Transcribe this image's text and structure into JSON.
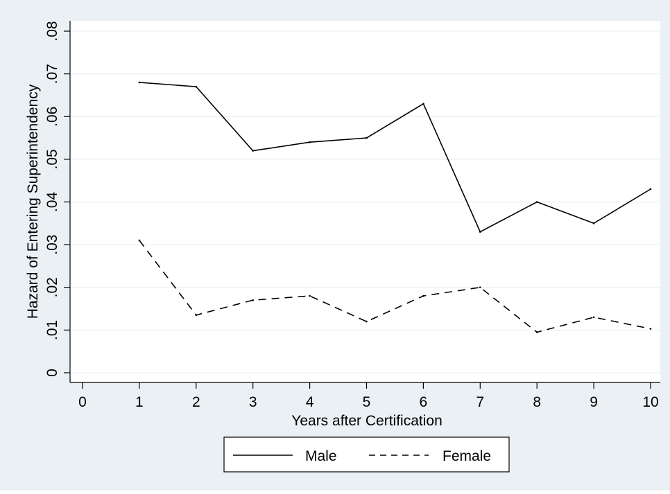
{
  "chart_data": {
    "type": "line",
    "title": "",
    "xlabel": "Years after Certification",
    "ylabel": "Hazard of Entering Superintendency",
    "xlim": [
      0,
      10
    ],
    "ylim": [
      0,
      0.08
    ],
    "x_ticks": [
      0,
      1,
      2,
      3,
      4,
      5,
      6,
      7,
      8,
      9,
      10
    ],
    "x_tick_labels": [
      "0",
      "1",
      "2",
      "3",
      "4",
      "5",
      "6",
      "7",
      "8",
      "9",
      "10"
    ],
    "y_ticks": [
      0,
      0.01,
      0.02,
      0.03,
      0.04,
      0.05,
      0.06,
      0.07,
      0.08
    ],
    "y_tick_labels": [
      "0",
      ".01",
      ".02",
      ".03",
      ".04",
      ".05",
      ".06",
      ".07",
      ".08"
    ],
    "grid": true,
    "legend_position": "bottom",
    "series": [
      {
        "name": "Male",
        "style": "solid",
        "color": "#000000",
        "x": [
          1,
          2,
          3,
          4,
          5,
          6,
          7,
          8,
          9,
          10
        ],
        "values": [
          0.068,
          0.067,
          0.052,
          0.054,
          0.055,
          0.063,
          0.033,
          0.04,
          0.035,
          0.043
        ]
      },
      {
        "name": "Female",
        "style": "dashed",
        "color": "#000000",
        "x": [
          1,
          2,
          3,
          4,
          5,
          6,
          7,
          8,
          9,
          10
        ],
        "values": [
          0.031,
          0.0135,
          0.017,
          0.018,
          0.012,
          0.018,
          0.02,
          0.0095,
          0.013,
          0.0103
        ]
      }
    ]
  },
  "colors": {
    "figure_background": "#eaf0f3",
    "plot_background": "#ffffff",
    "gridline": "#eaf0f3",
    "line": "#000000"
  }
}
